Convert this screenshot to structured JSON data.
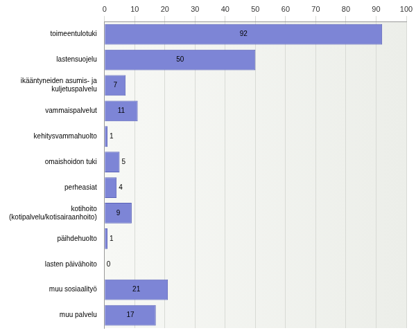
{
  "chart_data": {
    "type": "bar",
    "orientation": "horizontal",
    "categories": [
      "toimeentulotuki",
      "lastensuojelu",
      "ikääntyneiden asumis- ja\nkuljetuspalvelu",
      "vammaispalvelut",
      "kehitysvammahuolto",
      "omaishoidon tuki",
      "perheasiat",
      "kotihoito\n(kotipalvelu/kotisairaanhoito)",
      "päihdehuolto",
      "lasten päivähoito",
      "muu sosiaalityö",
      "muu palvelu"
    ],
    "values": [
      92,
      50,
      7,
      11,
      1,
      5,
      4,
      9,
      1,
      0,
      21,
      17
    ],
    "color": "#7d85d6",
    "xlim": [
      0,
      100
    ],
    "xticks": [
      0,
      10,
      20,
      30,
      40,
      50,
      60,
      70,
      80,
      90,
      100
    ],
    "grid": true,
    "data_labels": true
  }
}
